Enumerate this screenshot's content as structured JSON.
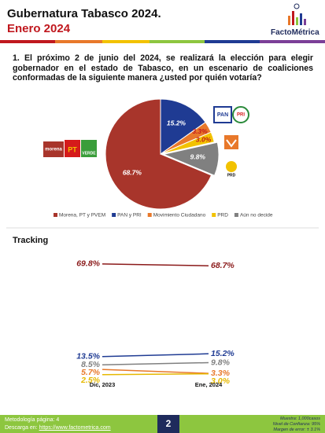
{
  "header": {
    "title": "Gubernatura Tabasco 2024.",
    "subtitle": "Enero 2024",
    "brand": "FactoMétrica"
  },
  "question": "1. El próximo 2 de junio del 2024, se realizará la elección para elegir gobernador en el estado de Tabasco, en un escenario de coaliciones conformadas de la siguiente manera ¿usted por quién votaría?",
  "logos": [
    "morena",
    "PT",
    "VERDE",
    "PAN",
    "PRI",
    "PRD"
  ],
  "chart_data": [
    {
      "type": "pie",
      "categories": [
        "Morena, PT y PVEM",
        "PAN y PRI",
        "Movimiento Ciudadano",
        "PRD",
        "Aún no decide"
      ],
      "values": [
        68.7,
        15.2,
        3.3,
        3.0,
        9.8
      ],
      "value_labels": [
        "68.7%",
        "15.2%",
        "3.3%",
        "3.0%",
        "9.8%"
      ],
      "colors": [
        "#a8352b",
        "#1f3b93",
        "#e8782a",
        "#f2c200",
        "#808080"
      ]
    },
    {
      "type": "line",
      "title": "Tracking",
      "x": [
        "Dic, 2023",
        "Ene, 2024"
      ],
      "ylim": [
        0,
        75
      ],
      "series": [
        {
          "color": "#8b1a1a",
          "values": [
            69.8,
            68.7
          ],
          "value_labels": [
            "69.8%",
            "68.7%"
          ]
        },
        {
          "color": "#1f3b93",
          "values": [
            13.5,
            15.2
          ],
          "value_labels": [
            "13.5%",
            "15.2%"
          ]
        },
        {
          "color": "#808080",
          "values": [
            8.5,
            9.8
          ],
          "value_labels": [
            "8.5%",
            "9.8%"
          ]
        },
        {
          "color": "#e8782a",
          "values": [
            5.7,
            3.3
          ],
          "value_labels": [
            "5.7%",
            "3.3%"
          ]
        },
        {
          "color": "#e6b800",
          "values": [
            2.5,
            3.0
          ],
          "value_labels": [
            "2.5%",
            "3.0%"
          ]
        }
      ]
    }
  ],
  "footer": {
    "methodology": "Metodología página: 4",
    "download_label": "Descarga en:",
    "download_url": "https://www.factometrica.com",
    "page": "2",
    "sample": "Muestra: 1,000casos",
    "confidence": "Nivel de Confianza: 95%",
    "margin": "Margen de error: ± 3.1%"
  }
}
